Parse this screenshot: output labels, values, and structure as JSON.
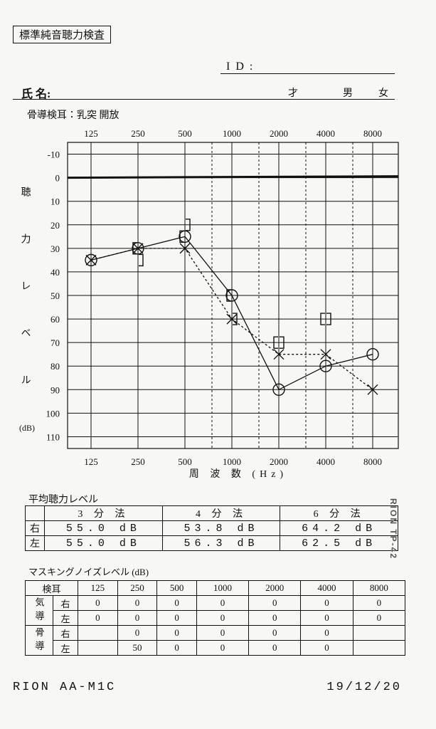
{
  "header": {
    "title": "標準純音聴力検査",
    "id_label": "ID:",
    "name_label": "氏 名:",
    "age_label": "才",
    "male_label": "男",
    "female_label": "女",
    "bone_conduction": "骨導検耳：乳突 開放"
  },
  "chart_data": {
    "type": "line",
    "categories": [
      "125",
      "250",
      "500",
      "1000",
      "2000",
      "4000",
      "8000"
    ],
    "ylabel": "聴力レベル",
    "ylabel_unit": "(dB)",
    "xlabel": "周 波 数 (Hz)",
    "ylim": [
      -15,
      115
    ],
    "y_inverted": true,
    "yticks": [
      -10,
      0,
      10,
      20,
      30,
      40,
      50,
      60,
      70,
      80,
      90,
      100,
      110
    ],
    "grid": true,
    "reference_line": 0,
    "series": [
      {
        "values": [
          35,
          30,
          25,
          50,
          90,
          80,
          75
        ],
        "marker": "o",
        "linestyle": "solid",
        "color": "#111111"
      },
      {
        "values": [
          35,
          30,
          30,
          60,
          75,
          75,
          90
        ],
        "marker": "x",
        "linestyle": "dashed",
        "color": "#111111"
      },
      {
        "values": [
          null,
          30,
          25,
          50,
          70,
          60,
          null
        ],
        "marker": "[",
        "linestyle": "none",
        "color": "#111111"
      },
      {
        "values": [
          null,
          35,
          20,
          60,
          70,
          60,
          null
        ],
        "marker": "]",
        "linestyle": "none",
        "color": "#111111"
      }
    ]
  },
  "average_table": {
    "title": "平均聴力レベル",
    "header": [
      "3 分 法",
      "4 分 法",
      "6 分 法"
    ],
    "rows": [
      [
        "右",
        "55.0 dB",
        "53.8 dB",
        "64.2 dB"
      ],
      [
        "左",
        "55.0 dB",
        "56.3 dB",
        "62.5 dB"
      ]
    ]
  },
  "masking_table": {
    "title": "マスキングノイズレベル (dB)",
    "header": [
      "検耳",
      "125",
      "250",
      "500",
      "1000",
      "2000",
      "4000",
      "8000"
    ],
    "groups": [
      {
        "label": "気導",
        "rows": [
          {
            "ear": "右",
            "values": [
              "0",
              "0",
              "0",
              "0",
              "0",
              "0",
              "0"
            ]
          },
          {
            "ear": "左",
            "values": [
              "0",
              "0",
              "0",
              "0",
              "0",
              "0",
              "0"
            ]
          }
        ]
      },
      {
        "label": "骨導",
        "rows": [
          {
            "ear": "右",
            "values": [
              null,
              "0",
              "0",
              "0",
              "0",
              "0",
              null
            ]
          },
          {
            "ear": "左",
            "values": [
              null,
              "50",
              "0",
              "0",
              "0",
              "0",
              null
            ]
          }
        ]
      }
    ]
  },
  "footer": {
    "model": "RION AA-M1C",
    "date": "19/12/20",
    "side_text": "RION TP-42"
  }
}
